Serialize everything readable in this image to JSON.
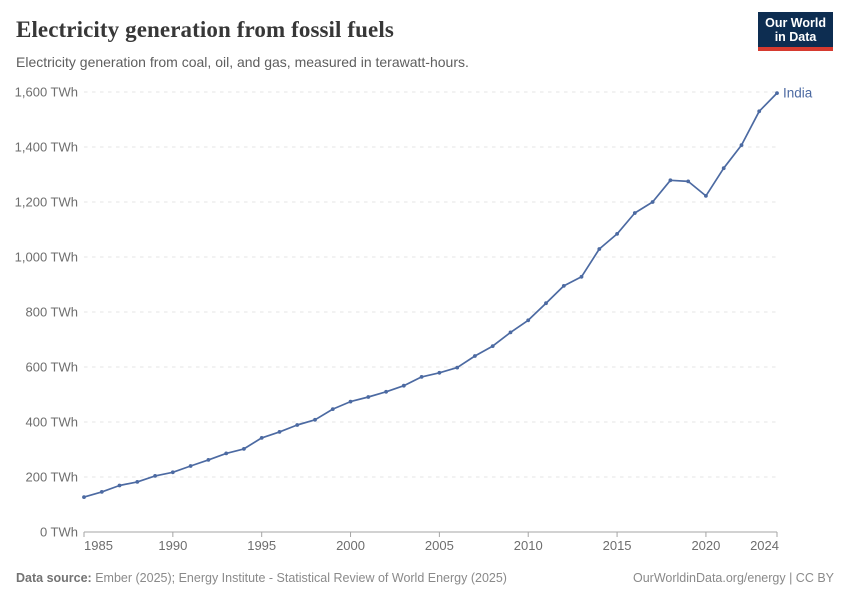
{
  "header": {
    "title": "Electricity generation from fossil fuels",
    "subtitle": "Electricity generation from coal, oil, and gas, measured in terawatt-hours."
  },
  "logo": {
    "line1": "Our World",
    "line2": "in Data"
  },
  "chart_data": {
    "type": "line",
    "title": "Electricity generation from fossil fuels",
    "ylabel": "",
    "xlabel": "",
    "unit": "TWh",
    "xlim": [
      1985,
      2024
    ],
    "ylim": [
      0,
      1600
    ],
    "grid": "horizontal-dashed",
    "legend_position": "end-of-line-label",
    "xticks": [
      1985,
      1990,
      1995,
      2000,
      2005,
      2010,
      2015,
      2020,
      2024
    ],
    "yticks": [
      {
        "value": 0,
        "label": "0 TWh"
      },
      {
        "value": 200,
        "label": "200 TWh"
      },
      {
        "value": 400,
        "label": "400 TWh"
      },
      {
        "value": 600,
        "label": "600 TWh"
      },
      {
        "value": 800,
        "label": "800 TWh"
      },
      {
        "value": 1000,
        "label": "1,000 TWh"
      },
      {
        "value": 1200,
        "label": "1,200 TWh"
      },
      {
        "value": 1400,
        "label": "1,400 TWh"
      },
      {
        "value": 1600,
        "label": "1,600 TWh"
      }
    ],
    "series": [
      {
        "name": "India",
        "color": "#4c6aa2",
        "x": [
          1985,
          1986,
          1987,
          1988,
          1989,
          1990,
          1991,
          1992,
          1993,
          1994,
          1995,
          1996,
          1997,
          1998,
          1999,
          2000,
          2001,
          2002,
          2003,
          2004,
          2005,
          2006,
          2007,
          2008,
          2009,
          2010,
          2011,
          2012,
          2013,
          2014,
          2015,
          2016,
          2017,
          2018,
          2019,
          2020,
          2021,
          2022,
          2023,
          2024
        ],
        "values": [
          127,
          146,
          169,
          182,
          204,
          217,
          240,
          262,
          286,
          302,
          342,
          364,
          389,
          408,
          447,
          474,
          491,
          510,
          532,
          564,
          579,
          598,
          640,
          676,
          726,
          770,
          832,
          895,
          928,
          1029,
          1084,
          1160,
          1200,
          1279,
          1275,
          1222,
          1323,
          1407,
          1530,
          1596
        ]
      }
    ]
  },
  "footer": {
    "source_label": "Data source:",
    "source_text": "Ember (2025); Energy Institute - Statistical Review of World Energy (2025)",
    "right_text": "OurWorldinData.org/energy | CC BY"
  },
  "colors": {
    "line": "#4c6aa2",
    "grid": "#e4e4e4",
    "axis": "#a5a5a5",
    "tick_text": "#6e6e6e",
    "title": "#373737",
    "subtitle": "#5e5e5e",
    "footer": "#8a8a8a",
    "logo_bg": "#0d2d51",
    "logo_accent": "#d63a2f"
  }
}
